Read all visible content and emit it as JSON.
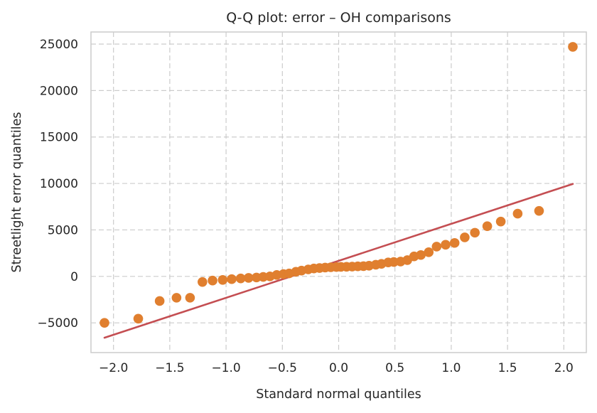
{
  "chart_data": {
    "type": "scatter",
    "title": "Q-Q plot: error – OH comparisons",
    "xlabel": "Standard normal quantiles",
    "ylabel": "Streetlight error quantiles",
    "xlim": [
      -2.2,
      2.2
    ],
    "ylim": [
      -8200,
      26300
    ],
    "xticks": [
      -2.0,
      -1.5,
      -1.0,
      -0.5,
      0.0,
      0.5,
      1.0,
      1.5,
      2.0
    ],
    "xtick_labels": [
      "−2.0",
      "−1.5",
      "−1.0",
      "−0.5",
      "0.0",
      "0.5",
      "1.0",
      "1.5",
      "2.0"
    ],
    "yticks": [
      -5000,
      0,
      5000,
      10000,
      15000,
      20000,
      25000
    ],
    "ytick_labels": [
      "−5000",
      "0",
      "5000",
      "10000",
      "15000",
      "20000",
      "25000"
    ],
    "grid": true,
    "series": [
      {
        "color": "#e07f2f",
        "points": [
          [
            -2.08,
            -5000
          ],
          [
            -1.78,
            -4550
          ],
          [
            -1.59,
            -2650
          ],
          [
            -1.44,
            -2300
          ],
          [
            -1.32,
            -2300
          ],
          [
            -1.21,
            -600
          ],
          [
            -1.12,
            -450
          ],
          [
            -1.03,
            -380
          ],
          [
            -0.95,
            -300
          ],
          [
            -0.87,
            -220
          ],
          [
            -0.8,
            -160
          ],
          [
            -0.73,
            -120
          ],
          [
            -0.67,
            -60
          ],
          [
            -0.61,
            0
          ],
          [
            -0.55,
            150
          ],
          [
            -0.49,
            250
          ],
          [
            -0.44,
            320
          ],
          [
            -0.38,
            500
          ],
          [
            -0.33,
            620
          ],
          [
            -0.27,
            750
          ],
          [
            -0.22,
            850
          ],
          [
            -0.17,
            900
          ],
          [
            -0.12,
            950
          ],
          [
            -0.07,
            980
          ],
          [
            -0.02,
            1000
          ],
          [
            0.02,
            1020
          ],
          [
            0.07,
            1030
          ],
          [
            0.12,
            1050
          ],
          [
            0.17,
            1080
          ],
          [
            0.22,
            1100
          ],
          [
            0.27,
            1150
          ],
          [
            0.33,
            1250
          ],
          [
            0.38,
            1350
          ],
          [
            0.44,
            1500
          ],
          [
            0.49,
            1550
          ],
          [
            0.55,
            1600
          ],
          [
            0.61,
            1750
          ],
          [
            0.67,
            2150
          ],
          [
            0.73,
            2300
          ],
          [
            0.8,
            2600
          ],
          [
            0.87,
            3200
          ],
          [
            0.95,
            3400
          ],
          [
            1.03,
            3600
          ],
          [
            1.12,
            4200
          ],
          [
            1.21,
            4700
          ],
          [
            1.32,
            5400
          ],
          [
            1.44,
            5900
          ],
          [
            1.59,
            6750
          ],
          [
            1.78,
            7050
          ],
          [
            2.08,
            24700
          ]
        ]
      }
    ],
    "reference_line": {
      "color": "#c44e52",
      "x": [
        -2.08,
        2.08
      ],
      "y": [
        -6600,
        9950
      ]
    }
  }
}
